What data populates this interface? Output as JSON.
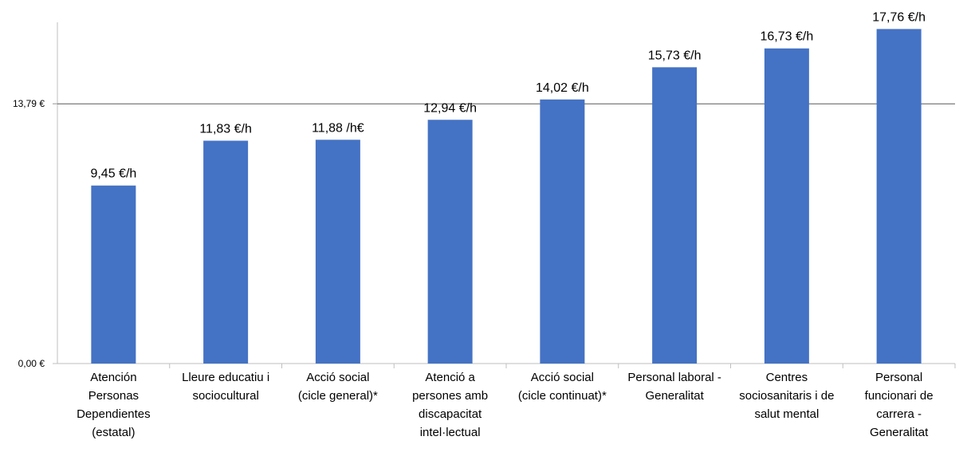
{
  "chart_data": {
    "type": "bar",
    "title": "",
    "xlabel": "",
    "ylabel": "",
    "ylim": [
      0,
      18.2
    ],
    "yticks": [
      {
        "value": 0,
        "label": "0,00 €"
      },
      {
        "value": 13.79,
        "label": "13,79 €"
      }
    ],
    "reference_line": {
      "value": 13.79
    },
    "grid": false,
    "bar_color": "#4472C4",
    "categories": [
      [
        "Atención",
        "Personas",
        "Dependientes",
        "(estatal)"
      ],
      [
        "Lleure educatiu i",
        "sociocultural"
      ],
      [
        "Acció social",
        "(cicle general)*"
      ],
      [
        "Atenció a",
        "persones amb",
        "discapacitat",
        "intel·lectual"
      ],
      [
        "Acció social",
        "(cicle continuat)*"
      ],
      [
        "Personal laboral -",
        "Generalitat"
      ],
      [
        "Centres",
        "sociosanitaris i de",
        "salut mental"
      ],
      [
        "Personal",
        "funcionari de",
        "carrera -",
        "Generalitat"
      ]
    ],
    "values": [
      9.45,
      11.83,
      11.88,
      12.94,
      14.02,
      15.73,
      16.73,
      17.76
    ],
    "data_labels": [
      "9,45 €/h",
      "11,83 €/h",
      "11,88 /h€",
      "12,94 €/h",
      "14,02 €/h",
      "15,73 €/h",
      "16,73 €/h",
      "17,76 €/h"
    ]
  }
}
